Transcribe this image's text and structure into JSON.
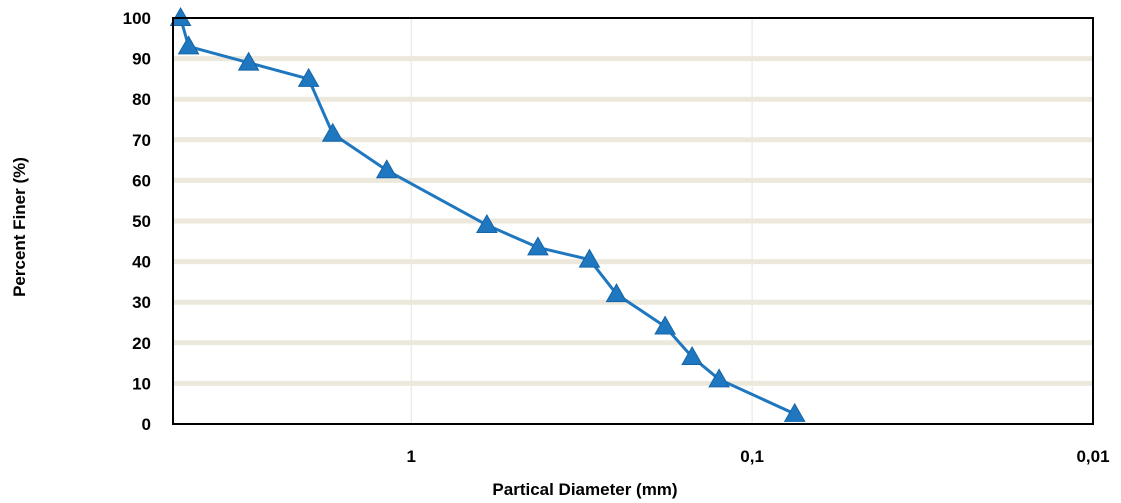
{
  "chart_data": {
    "type": "line",
    "title": "",
    "xlabel": "Partical Diameter (mm)",
    "ylabel": "Percent Finer (%)",
    "x_scale": "log",
    "x_reversed": true,
    "xlim": [
      5,
      0.01
    ],
    "ylim": [
      0,
      100
    ],
    "y_ticks": [
      0,
      10,
      20,
      30,
      40,
      50,
      60,
      70,
      80,
      90,
      100
    ],
    "y_tick_labels": [
      "0",
      "10",
      "20",
      "30",
      "40",
      "50",
      "60",
      "70",
      "80",
      "90",
      "100"
    ],
    "x_ticks": [
      1,
      0.1,
      0.01
    ],
    "x_tick_labels": [
      "1",
      "0,1",
      "0,01"
    ],
    "grid": "horizontal",
    "legend": "none",
    "series": [
      {
        "marker": "triangle",
        "color": "#1f77c0",
        "points": [
          {
            "x": 4.75,
            "y": 100
          },
          {
            "x": 4.5,
            "y": 93
          },
          {
            "x": 3.0,
            "y": 89
          },
          {
            "x": 2.0,
            "y": 85
          },
          {
            "x": 1.7,
            "y": 71.5
          },
          {
            "x": 1.18,
            "y": 62.5
          },
          {
            "x": 0.6,
            "y": 49
          },
          {
            "x": 0.425,
            "y": 43.5
          },
          {
            "x": 0.3,
            "y": 40.5
          },
          {
            "x": 0.25,
            "y": 32
          },
          {
            "x": 0.18,
            "y": 24
          },
          {
            "x": 0.15,
            "y": 16.5
          },
          {
            "x": 0.125,
            "y": 11
          },
          {
            "x": 0.075,
            "y": 2.5
          }
        ]
      }
    ]
  }
}
